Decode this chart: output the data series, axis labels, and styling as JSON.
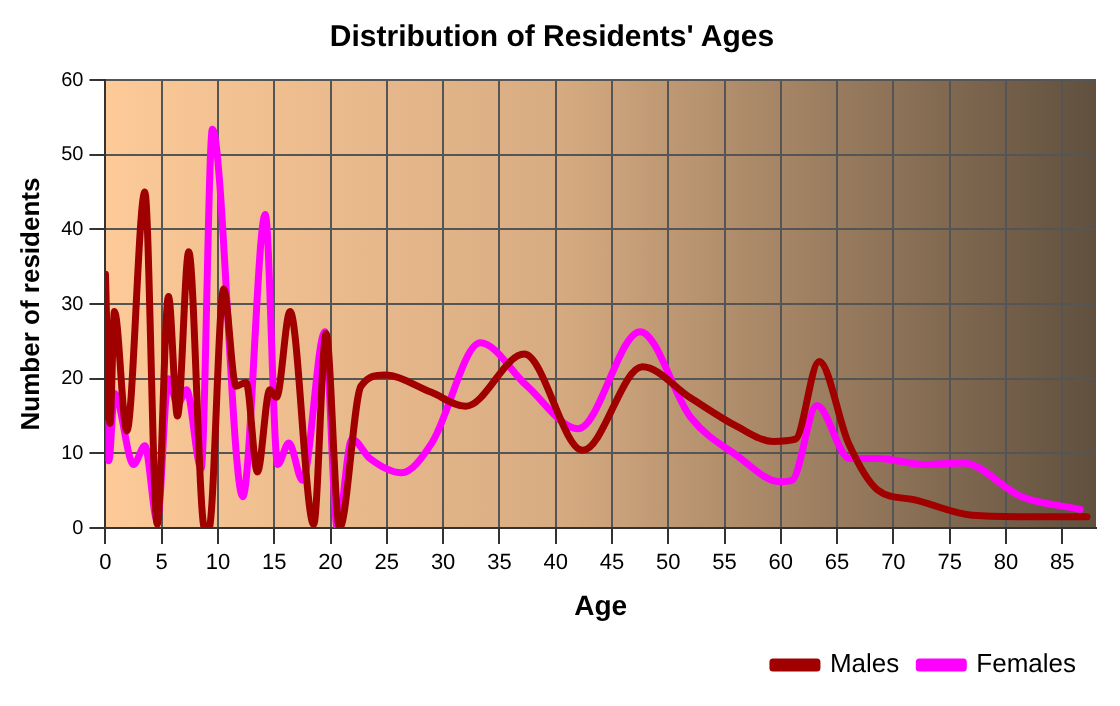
{
  "chart_data": {
    "type": "line",
    "title": "Distribution of Residents' Ages",
    "xlabel": "Age",
    "ylabel": "Number of residents",
    "xlim": [
      0,
      88
    ],
    "xticks": [
      0,
      5,
      10,
      15,
      20,
      25,
      30,
      35,
      40,
      45,
      50,
      55,
      60,
      65,
      70,
      75,
      80,
      85
    ],
    "ylim": [
      0,
      60
    ],
    "yticks": [
      0,
      10,
      20,
      30,
      40,
      50,
      60
    ],
    "grid": true,
    "legend": "bottom right",
    "marker": "none",
    "line_style": "solid",
    "series": [
      {
        "name": "Males",
        "color": "#a00000",
        "x": [
          0,
          0.4,
          0.8,
          1.9,
          3.5,
          4.6,
          5.6,
          6.4,
          7.4,
          8.8,
          9.2,
          10.5,
          11.6,
          12.5,
          13.5,
          14.6,
          15.2,
          16.4,
          18.5,
          19.6,
          20.8,
          22.7,
          24.8,
          28.9,
          32,
          37.2,
          42.4,
          47.7,
          52,
          56.1,
          59.3,
          61.3,
          63.4,
          66,
          68.6,
          71.8,
          77,
          81.6,
          87.2
        ],
        "values": [
          34,
          14,
          29,
          13,
          45,
          0.5,
          31,
          15,
          37,
          0,
          0,
          32,
          19,
          19.5,
          7.5,
          18.5,
          17.5,
          29,
          0.5,
          26,
          0,
          19,
          20.5,
          18.2,
          16.3,
          23.3,
          10.4,
          21.6,
          17.4,
          13.6,
          11.6,
          11.9,
          22.3,
          11.4,
          5.1,
          3.8,
          1.7,
          1.5,
          1.5
        ]
      },
      {
        "name": "Females",
        "color": "#ff00ff",
        "x": [
          0,
          0.3,
          0.8,
          2.5,
          3.5,
          4.6,
          5.6,
          6.4,
          7.2,
          8.5,
          9.5,
          12.2,
          14.2,
          15.3,
          16.3,
          17.5,
          19.5,
          20.6,
          21.9,
          23.5,
          26.3,
          29,
          33.3,
          37.4,
          42,
          47.5,
          52,
          56.1,
          59.9,
          61,
          63.2,
          66.1,
          68.7,
          72.7,
          76.2,
          81.4,
          86.6
        ],
        "values": [
          14,
          9,
          18,
          8.5,
          11,
          1,
          20,
          16.5,
          18.5,
          8,
          53.4,
          4.2,
          42,
          8.5,
          11.4,
          6.4,
          26.3,
          0,
          11.9,
          9.3,
          7.4,
          11.4,
          24.8,
          19.1,
          13.3,
          26.3,
          14.8,
          9.7,
          6.2,
          6.4,
          16.4,
          9.3,
          9.3,
          8.5,
          8.7,
          4.2,
          2.5
        ]
      }
    ]
  }
}
